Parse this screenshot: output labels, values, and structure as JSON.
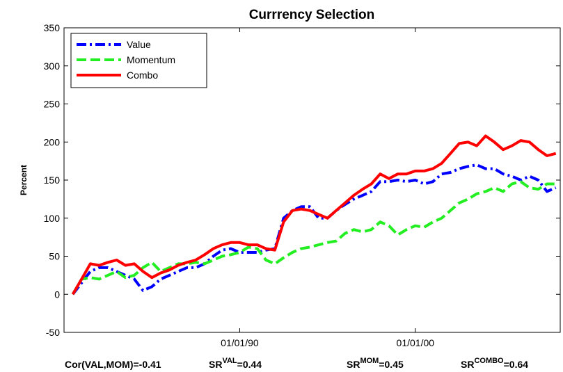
{
  "chart_data": {
    "type": "line",
    "title": "Currrency Selection",
    "ylabel": "Percent",
    "ylim": [
      -50,
      350
    ],
    "yticks": [
      -50,
      0,
      50,
      100,
      150,
      200,
      250,
      300,
      350
    ],
    "xlim": [
      "01/01/80",
      "04/01/08"
    ],
    "xticks": [
      "01/01/90",
      "01/01/00"
    ],
    "legend": "upper left",
    "x": [
      "07/01/80",
      "01/01/81",
      "07/01/81",
      "01/01/82",
      "07/01/82",
      "01/01/83",
      "07/01/83",
      "01/01/84",
      "07/01/84",
      "01/01/85",
      "07/01/85",
      "01/01/86",
      "07/01/86",
      "01/01/87",
      "07/01/87",
      "01/01/88",
      "07/01/88",
      "01/01/89",
      "07/01/89",
      "01/01/90",
      "07/01/90",
      "01/01/91",
      "07/01/91",
      "01/01/92",
      "07/01/92",
      "01/01/93",
      "07/01/93",
      "01/01/94",
      "07/01/94",
      "01/01/95",
      "07/01/95",
      "01/01/96",
      "07/01/96",
      "01/01/97",
      "07/01/97",
      "01/01/98",
      "07/01/98",
      "01/01/99",
      "07/01/99",
      "01/01/00",
      "07/01/00",
      "01/01/01",
      "07/01/01",
      "01/01/02",
      "07/01/02",
      "01/01/03",
      "07/01/03",
      "01/01/04",
      "07/01/04",
      "01/01/05",
      "07/01/05",
      "01/01/06",
      "07/01/06",
      "01/01/07",
      "07/01/07",
      "01/01/08"
    ],
    "series": [
      {
        "name": "Value",
        "color": "#0000ff",
        "linestyle": "dashdot",
        "values": [
          0,
          15,
          30,
          35,
          35,
          30,
          25,
          20,
          5,
          10,
          20,
          25,
          30,
          35,
          35,
          40,
          50,
          58,
          60,
          55,
          55,
          55,
          58,
          60,
          100,
          110,
          115,
          115,
          100,
          100,
          110,
          118,
          125,
          130,
          135,
          148,
          148,
          150,
          148,
          150,
          145,
          148,
          158,
          160,
          165,
          168,
          170,
          165,
          165,
          158,
          155,
          150,
          155,
          150,
          135,
          140
        ]
      },
      {
        "name": "Momentum",
        "color": "#22ee22",
        "linestyle": "dashed",
        "values": [
          0,
          20,
          22,
          20,
          25,
          30,
          22,
          25,
          35,
          42,
          30,
          35,
          40,
          40,
          42,
          40,
          45,
          50,
          52,
          55,
          62,
          60,
          45,
          40,
          48,
          55,
          60,
          62,
          65,
          68,
          70,
          80,
          85,
          82,
          85,
          95,
          90,
          78,
          85,
          90,
          88,
          95,
          100,
          110,
          120,
          125,
          132,
          135,
          140,
          135,
          145,
          148,
          140,
          138,
          145,
          145
        ]
      },
      {
        "name": "Combo",
        "color": "#ff0000",
        "linestyle": "solid",
        "values": [
          0,
          20,
          40,
          38,
          42,
          45,
          38,
          40,
          30,
          22,
          28,
          32,
          38,
          42,
          45,
          52,
          60,
          65,
          68,
          68,
          65,
          65,
          60,
          58,
          95,
          110,
          112,
          110,
          105,
          100,
          110,
          120,
          130,
          138,
          145,
          158,
          152,
          158,
          158,
          162,
          162,
          165,
          172,
          185,
          198,
          200,
          195,
          208,
          200,
          190,
          195,
          202,
          200,
          190,
          182,
          185
        ]
      }
    ],
    "annotations": [
      {
        "text": "Cor(VAL,MOM)=-0.41"
      },
      {
        "text": "SR",
        "sup": "VAL",
        "tail": "=0.44"
      },
      {
        "text": "SR",
        "sup": "MOM",
        "tail": "=0.45"
      },
      {
        "text": "SR",
        "sup": "COMBO",
        "tail": "=0.64"
      }
    ]
  }
}
